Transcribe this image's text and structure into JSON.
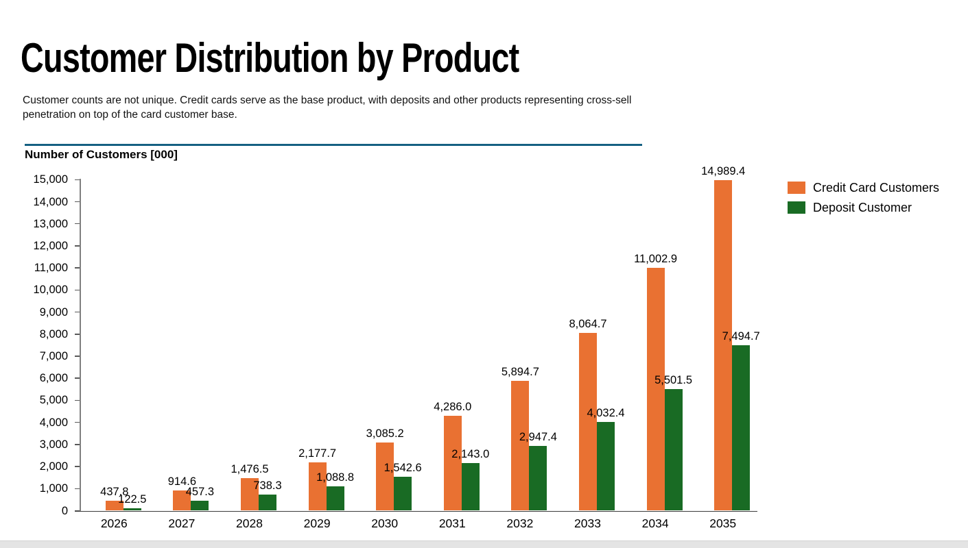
{
  "page": {
    "title": "Customer Distribution by Product",
    "subtitle": "Customer counts are not unique. Credit cards serve as the base product, with deposits and other products representing cross-sell penetration on top of the card customer base.",
    "axis_title": "Number of Customers [000]",
    "divider_color": "#156082",
    "footer_strip_color": "#e4e4e4"
  },
  "legend": {
    "position": "right-top",
    "items": [
      {
        "label": "Credit Card Customers",
        "color": "#E97132"
      },
      {
        "label": "Deposit Customer",
        "color": "#196B24"
      }
    ]
  },
  "chart_data": {
    "type": "bar",
    "title": "Number of Customers [000]",
    "categories": [
      "2026",
      "2027",
      "2028",
      "2029",
      "2030",
      "2031",
      "2032",
      "2033",
      "2034",
      "2035"
    ],
    "series": [
      {
        "name": "Credit Card Customers",
        "color": "#E97132",
        "values": [
          437.8,
          914.6,
          1476.5,
          2177.7,
          3085.2,
          4286.0,
          5894.7,
          8064.7,
          11002.9,
          14989.4
        ],
        "labels": [
          "437.8",
          "914.6",
          "1,476.5",
          "2,177.7",
          "3,085.2",
          "4,286.0",
          "5,894.7",
          "8,064.7",
          "11,002.9",
          "14,989.4"
        ]
      },
      {
        "name": "Deposit Customer",
        "color": "#196B24",
        "values": [
          122.5,
          457.3,
          738.3,
          1088.8,
          1542.6,
          2143.0,
          2947.4,
          4032.4,
          5501.5,
          7494.7
        ],
        "labels": [
          "122.5",
          "457.3",
          "738.3",
          "1,088.8",
          "1,542.6",
          "2,143.0",
          "2,947.4",
          "4,032.4",
          "5,501.5",
          "7,494.7"
        ]
      }
    ],
    "ylim": [
      0,
      15000
    ],
    "y_tick_step": 1000,
    "y_tick_labels": [
      "0",
      "1,000",
      "2,000",
      "3,000",
      "4,000",
      "5,000",
      "6,000",
      "7,000",
      "8,000",
      "9,000",
      "10,000",
      "11,000",
      "12,000",
      "13,000",
      "14,000",
      "15,000"
    ],
    "grid": false,
    "data_labels": "outside-end",
    "legend_position": "right-top"
  }
}
